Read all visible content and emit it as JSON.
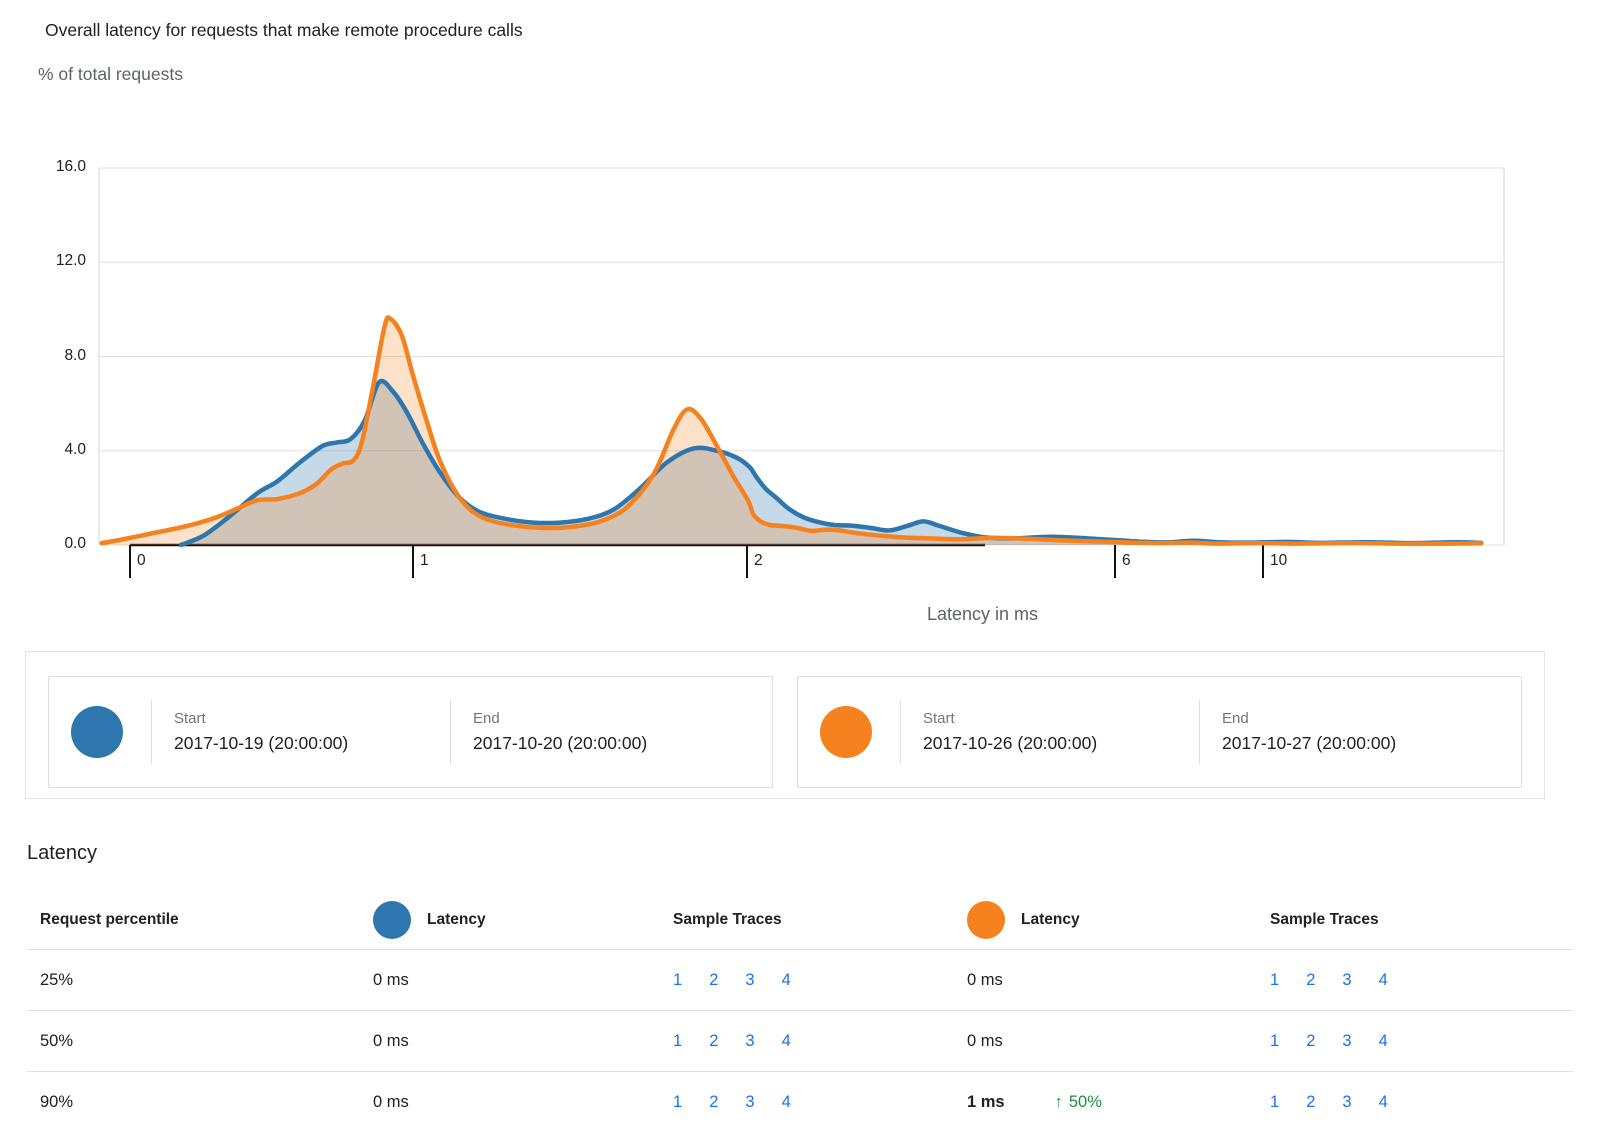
{
  "header": {
    "title": "Overall latency for requests that make remote procedure calls",
    "subtitle": "% of total requests"
  },
  "chart_data": {
    "type": "area",
    "title": "Overall latency for requests that make remote procedure calls",
    "ylabel": "% of total requests",
    "xlabel": "Latency in ms",
    "ylim": [
      0,
      16
    ],
    "yticks": [
      0,
      4,
      8,
      12,
      16
    ],
    "ytick_labels": [
      "0.0",
      "4.0",
      "8.0",
      "12.0",
      "16.0"
    ],
    "xticks": [
      0,
      1,
      2,
      6,
      10
    ],
    "xtick_labels": [
      "0",
      "1",
      "2",
      "6",
      "10"
    ],
    "grid": "horizontal",
    "legend_position": "below",
    "series": [
      {
        "name": "2017-10-19 (20:00:00) to 2017-10-20 (20:00:00)",
        "color": "#2d76ae",
        "fill": "rgba(45,118,174,0.28)",
        "points": [
          [
            0.18,
            0
          ],
          [
            0.26,
            0.4
          ],
          [
            0.35,
            1.2
          ],
          [
            0.45,
            2.2
          ],
          [
            0.52,
            2.7
          ],
          [
            0.6,
            3.5
          ],
          [
            0.68,
            4.2
          ],
          [
            0.73,
            4.35
          ],
          [
            0.78,
            4.5
          ],
          [
            0.83,
            5.3
          ],
          [
            0.88,
            6.9
          ],
          [
            0.93,
            6.5
          ],
          [
            0.98,
            5.6
          ],
          [
            1.03,
            4.3
          ],
          [
            1.08,
            3.1
          ],
          [
            1.14,
            2.0
          ],
          [
            1.2,
            1.4
          ],
          [
            1.28,
            1.1
          ],
          [
            1.36,
            0.95
          ],
          [
            1.44,
            0.95
          ],
          [
            1.52,
            1.1
          ],
          [
            1.6,
            1.5
          ],
          [
            1.68,
            2.4
          ],
          [
            1.76,
            3.5
          ],
          [
            1.84,
            4.1
          ],
          [
            1.91,
            4.0
          ],
          [
            1.97,
            3.7
          ],
          [
            2.03,
            3.3
          ],
          [
            2.1,
            2.9
          ],
          [
            2.2,
            2.4
          ],
          [
            2.32,
            2.0
          ],
          [
            2.45,
            1.55
          ],
          [
            2.6,
            1.2
          ],
          [
            2.75,
            1.0
          ],
          [
            2.95,
            0.85
          ],
          [
            3.15,
            0.82
          ],
          [
            3.35,
            0.72
          ],
          [
            3.55,
            0.62
          ],
          [
            3.75,
            0.82
          ],
          [
            3.92,
            1.0
          ],
          [
            4.1,
            0.8
          ],
          [
            4.35,
            0.5
          ],
          [
            4.6,
            0.32
          ],
          [
            4.9,
            0.28
          ],
          [
            5.3,
            0.35
          ],
          [
            5.7,
            0.28
          ],
          [
            6.1,
            0.2
          ],
          [
            6.7,
            0.14
          ],
          [
            7.4,
            0.11
          ],
          [
            8.1,
            0.18
          ],
          [
            8.8,
            0.12
          ],
          [
            9.6,
            0.1
          ],
          [
            10.6,
            0.13
          ],
          [
            11.6,
            0.09
          ],
          [
            12.8,
            0.12
          ],
          [
            14,
            0.08
          ],
          [
            15.2,
            0.12
          ],
          [
            15.9,
            0.09
          ]
        ]
      },
      {
        "name": "2017-10-26 (20:00:00) to 2017-10-27 (20:00:00)",
        "color": "#f5821f",
        "fill": "rgba(245,130,31,0.24)",
        "points": [
          [
            -0.1,
            0.08
          ],
          [
            0.0,
            0.3
          ],
          [
            0.1,
            0.55
          ],
          [
            0.2,
            0.8
          ],
          [
            0.3,
            1.15
          ],
          [
            0.38,
            1.55
          ],
          [
            0.45,
            1.9
          ],
          [
            0.52,
            1.95
          ],
          [
            0.6,
            2.2
          ],
          [
            0.66,
            2.6
          ],
          [
            0.71,
            3.2
          ],
          [
            0.75,
            3.45
          ],
          [
            0.79,
            3.6
          ],
          [
            0.82,
            4.4
          ],
          [
            0.86,
            6.8
          ],
          [
            0.9,
            9.3
          ],
          [
            0.92,
            9.6
          ],
          [
            0.96,
            8.9
          ],
          [
            1.0,
            7.2
          ],
          [
            1.04,
            5.3
          ],
          [
            1.08,
            3.6
          ],
          [
            1.13,
            2.2
          ],
          [
            1.18,
            1.4
          ],
          [
            1.24,
            1.0
          ],
          [
            1.32,
            0.8
          ],
          [
            1.4,
            0.72
          ],
          [
            1.48,
            0.78
          ],
          [
            1.56,
            1.0
          ],
          [
            1.64,
            1.6
          ],
          [
            1.72,
            3.0
          ],
          [
            1.78,
            4.9
          ],
          [
            1.82,
            5.75
          ],
          [
            1.86,
            5.4
          ],
          [
            1.91,
            4.2
          ],
          [
            1.96,
            2.9
          ],
          [
            2.01,
            1.9
          ],
          [
            2.07,
            1.3
          ],
          [
            2.15,
            1.0
          ],
          [
            2.25,
            0.85
          ],
          [
            2.4,
            0.8
          ],
          [
            2.55,
            0.72
          ],
          [
            2.7,
            0.6
          ],
          [
            2.85,
            0.65
          ],
          [
            3.0,
            0.62
          ],
          [
            3.2,
            0.5
          ],
          [
            3.45,
            0.4
          ],
          [
            3.7,
            0.32
          ],
          [
            4.0,
            0.28
          ],
          [
            4.3,
            0.24
          ],
          [
            4.65,
            0.3
          ],
          [
            5.0,
            0.27
          ],
          [
            5.4,
            0.2
          ],
          [
            5.9,
            0.14
          ],
          [
            6.5,
            0.1
          ],
          [
            7.2,
            0.08
          ],
          [
            8.0,
            0.1
          ],
          [
            8.8,
            0.06
          ],
          [
            9.8,
            0.08
          ],
          [
            11,
            0.06
          ],
          [
            12.5,
            0.08
          ],
          [
            14,
            0.05
          ],
          [
            15.9,
            0.07
          ]
        ]
      }
    ]
  },
  "legend": {
    "cards": [
      {
        "color": "#2d76ae",
        "start_label": "Start",
        "start_value": "2017-10-19 (20:00:00)",
        "end_label": "End",
        "end_value": "2017-10-20 (20:00:00)"
      },
      {
        "color": "#f5821f",
        "start_label": "Start",
        "start_value": "2017-10-26 (20:00:00)",
        "end_label": "End",
        "end_value": "2017-10-27 (20:00:00)"
      }
    ]
  },
  "table": {
    "section_title": "Latency",
    "columns": {
      "percentile": "Request percentile",
      "latency": "Latency",
      "sample_traces": "Sample Traces"
    },
    "rows": [
      {
        "percentile": "25%",
        "blue_latency": "0 ms",
        "blue_traces": [
          "1",
          "2",
          "3",
          "4"
        ],
        "orange_latency": "0 ms",
        "orange_traces": [
          "1",
          "2",
          "3",
          "4"
        ]
      },
      {
        "percentile": "50%",
        "blue_latency": "0 ms",
        "blue_traces": [
          "1",
          "2",
          "3",
          "4"
        ],
        "orange_latency": "0 ms",
        "orange_traces": [
          "1",
          "2",
          "3",
          "4"
        ]
      },
      {
        "percentile": "90%",
        "blue_latency": "0 ms",
        "blue_traces": [
          "1",
          "2",
          "3",
          "4"
        ],
        "orange_latency": "1 ms",
        "orange_delta_icon": "↑",
        "orange_delta": "50%",
        "orange_traces": [
          "1",
          "2",
          "3",
          "4"
        ]
      }
    ]
  }
}
